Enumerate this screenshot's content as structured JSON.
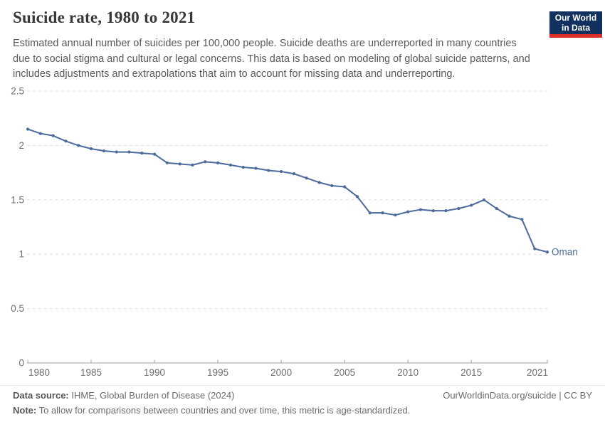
{
  "header": {
    "title": "Suicide rate, 1980 to 2021",
    "subtitle": "Estimated annual number of suicides per 100,000 people. Suicide deaths are underreported in many countries due to social stigma and cultural or legal concerns. This data is based on modeling of global suicide patterns, and includes adjustments and extrapolations that aim to account for missing data and underreporting.",
    "logo": {
      "line1": "Our World",
      "line2": "in Data"
    }
  },
  "colors": {
    "series_blue": "#4c6a9c",
    "logo_navy": "#12315e",
    "logo_red": "#dc2e26",
    "grid_gray": "#d8d8d8",
    "axis_gray": "#a0a0a0",
    "tick_text": "#6e6e6e"
  },
  "chart_data": {
    "type": "line",
    "title": "Suicide rate, 1980 to 2021",
    "xlabel": "",
    "ylabel": "",
    "x": [
      1980,
      1981,
      1982,
      1983,
      1984,
      1985,
      1986,
      1987,
      1988,
      1989,
      1990,
      1991,
      1992,
      1993,
      1994,
      1995,
      1996,
      1997,
      1998,
      1999,
      2000,
      2001,
      2002,
      2003,
      2004,
      2005,
      2006,
      2007,
      2008,
      2009,
      2010,
      2011,
      2012,
      2013,
      2014,
      2015,
      2016,
      2017,
      2018,
      2019,
      2020,
      2021
    ],
    "series": [
      {
        "name": "Oman",
        "color": "#4c6a9c",
        "values": [
          2.15,
          2.11,
          2.09,
          2.04,
          2.0,
          1.97,
          1.95,
          1.94,
          1.94,
          1.93,
          1.92,
          1.84,
          1.83,
          1.82,
          1.85,
          1.84,
          1.82,
          1.8,
          1.79,
          1.77,
          1.76,
          1.74,
          1.7,
          1.66,
          1.63,
          1.62,
          1.53,
          1.38,
          1.38,
          1.36,
          1.39,
          1.41,
          1.4,
          1.4,
          1.42,
          1.45,
          1.5,
          1.42,
          1.35,
          1.32,
          1.05,
          1.02
        ]
      }
    ],
    "ylim": [
      0,
      2.5
    ],
    "yticks": [
      0,
      0.5,
      1,
      1.5,
      2,
      2.5
    ],
    "ytick_labels": [
      "0",
      "0.5",
      "1",
      "1.5",
      "2",
      "2.5"
    ],
    "xticks": [
      1980,
      1985,
      1990,
      1995,
      2000,
      2005,
      2010,
      2015,
      2021
    ],
    "grid": "horizontal-dashed",
    "legend_position": "end-of-line-label"
  },
  "footer": {
    "source_label": "Data source:",
    "source_text": " IHME, Global Burden of Disease (2024)",
    "rights": "OurWorldinData.org/suicide | CC BY",
    "note_label": "Note:",
    "note_text": " To allow for comparisons between countries and over time, this metric is age-standardized."
  }
}
